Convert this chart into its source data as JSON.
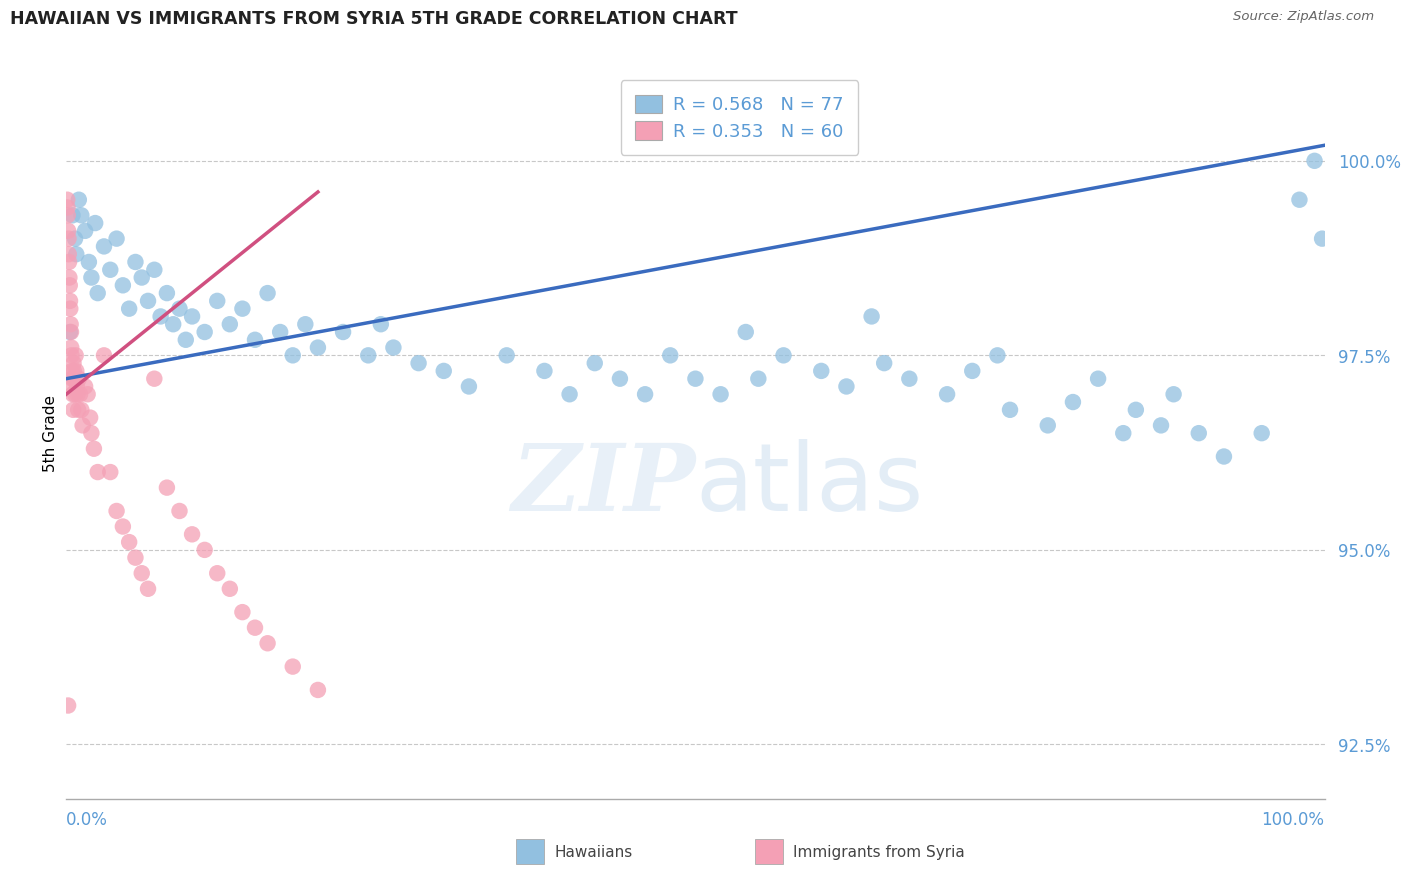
{
  "title": "HAWAIIAN VS IMMIGRANTS FROM SYRIA 5TH GRADE CORRELATION CHART",
  "source": "Source: ZipAtlas.com",
  "ylabel": "5th Grade",
  "ytick_vals": [
    92.5,
    95.0,
    97.5,
    100.0
  ],
  "ytick_labels": [
    "92.5%",
    "95.0%",
    "97.5%",
    "100.0%"
  ],
  "xmin": 0.0,
  "xmax": 100.0,
  "ymin": 91.8,
  "ymax": 101.2,
  "legend_blue_r": "R = 0.568",
  "legend_blue_n": "N = 77",
  "legend_pink_r": "R = 0.353",
  "legend_pink_n": "N = 60",
  "blue_color": "#92c0e0",
  "pink_color": "#f4a0b5",
  "trend_blue_color": "#3a6bbf",
  "trend_pink_color": "#d05080",
  "axis_label_color": "#5b9bd5",
  "title_color": "#222222",
  "grid_color": "#c8c8c8",
  "blue_points": [
    [
      0.3,
      97.8
    ],
    [
      0.5,
      99.3
    ],
    [
      0.7,
      99.0
    ],
    [
      0.8,
      98.8
    ],
    [
      1.0,
      99.5
    ],
    [
      1.2,
      99.3
    ],
    [
      1.5,
      99.1
    ],
    [
      1.8,
      98.7
    ],
    [
      2.0,
      98.5
    ],
    [
      2.3,
      99.2
    ],
    [
      2.5,
      98.3
    ],
    [
      3.0,
      98.9
    ],
    [
      3.5,
      98.6
    ],
    [
      4.0,
      99.0
    ],
    [
      4.5,
      98.4
    ],
    [
      5.0,
      98.1
    ],
    [
      5.5,
      98.7
    ],
    [
      6.0,
      98.5
    ],
    [
      6.5,
      98.2
    ],
    [
      7.0,
      98.6
    ],
    [
      7.5,
      98.0
    ],
    [
      8.0,
      98.3
    ],
    [
      8.5,
      97.9
    ],
    [
      9.0,
      98.1
    ],
    [
      9.5,
      97.7
    ],
    [
      10.0,
      98.0
    ],
    [
      11.0,
      97.8
    ],
    [
      12.0,
      98.2
    ],
    [
      13.0,
      97.9
    ],
    [
      14.0,
      98.1
    ],
    [
      15.0,
      97.7
    ],
    [
      16.0,
      98.3
    ],
    [
      17.0,
      97.8
    ],
    [
      18.0,
      97.5
    ],
    [
      19.0,
      97.9
    ],
    [
      20.0,
      97.6
    ],
    [
      22.0,
      97.8
    ],
    [
      24.0,
      97.5
    ],
    [
      25.0,
      97.9
    ],
    [
      26.0,
      97.6
    ],
    [
      28.0,
      97.4
    ],
    [
      30.0,
      97.3
    ],
    [
      32.0,
      97.1
    ],
    [
      35.0,
      97.5
    ],
    [
      38.0,
      97.3
    ],
    [
      40.0,
      97.0
    ],
    [
      42.0,
      97.4
    ],
    [
      44.0,
      97.2
    ],
    [
      46.0,
      97.0
    ],
    [
      48.0,
      97.5
    ],
    [
      50.0,
      97.2
    ],
    [
      52.0,
      97.0
    ],
    [
      54.0,
      97.8
    ],
    [
      55.0,
      97.2
    ],
    [
      57.0,
      97.5
    ],
    [
      60.0,
      97.3
    ],
    [
      62.0,
      97.1
    ],
    [
      64.0,
      98.0
    ],
    [
      65.0,
      97.4
    ],
    [
      67.0,
      97.2
    ],
    [
      70.0,
      97.0
    ],
    [
      72.0,
      97.3
    ],
    [
      74.0,
      97.5
    ],
    [
      75.0,
      96.8
    ],
    [
      78.0,
      96.6
    ],
    [
      80.0,
      96.9
    ],
    [
      82.0,
      97.2
    ],
    [
      84.0,
      96.5
    ],
    [
      85.0,
      96.8
    ],
    [
      87.0,
      96.6
    ],
    [
      88.0,
      97.0
    ],
    [
      90.0,
      96.5
    ],
    [
      92.0,
      96.2
    ],
    [
      95.0,
      96.5
    ],
    [
      98.0,
      99.5
    ],
    [
      99.2,
      100.0
    ],
    [
      99.8,
      99.0
    ]
  ],
  "pink_points": [
    [
      0.08,
      99.5
    ],
    [
      0.1,
      99.4
    ],
    [
      0.12,
      99.3
    ],
    [
      0.15,
      99.1
    ],
    [
      0.18,
      99.0
    ],
    [
      0.2,
      98.8
    ],
    [
      0.22,
      98.7
    ],
    [
      0.25,
      98.5
    ],
    [
      0.28,
      98.4
    ],
    [
      0.3,
      98.2
    ],
    [
      0.32,
      98.1
    ],
    [
      0.35,
      97.9
    ],
    [
      0.38,
      97.8
    ],
    [
      0.4,
      97.6
    ],
    [
      0.42,
      97.5
    ],
    [
      0.45,
      97.3
    ],
    [
      0.48,
      97.2
    ],
    [
      0.5,
      97.1
    ],
    [
      0.52,
      97.0
    ],
    [
      0.55,
      96.8
    ],
    [
      0.58,
      97.4
    ],
    [
      0.6,
      97.3
    ],
    [
      0.65,
      97.2
    ],
    [
      0.7,
      97.0
    ],
    [
      0.75,
      97.5
    ],
    [
      0.8,
      97.3
    ],
    [
      0.85,
      97.1
    ],
    [
      0.9,
      97.0
    ],
    [
      0.95,
      96.8
    ],
    [
      1.0,
      97.2
    ],
    [
      1.1,
      97.0
    ],
    [
      1.2,
      96.8
    ],
    [
      1.3,
      96.6
    ],
    [
      1.5,
      97.1
    ],
    [
      1.7,
      97.0
    ],
    [
      1.9,
      96.7
    ],
    [
      2.0,
      96.5
    ],
    [
      2.2,
      96.3
    ],
    [
      2.5,
      96.0
    ],
    [
      3.0,
      97.5
    ],
    [
      3.5,
      96.0
    ],
    [
      4.0,
      95.5
    ],
    [
      4.5,
      95.3
    ],
    [
      5.0,
      95.1
    ],
    [
      5.5,
      94.9
    ],
    [
      6.0,
      94.7
    ],
    [
      6.5,
      94.5
    ],
    [
      7.0,
      97.2
    ],
    [
      8.0,
      95.8
    ],
    [
      9.0,
      95.5
    ],
    [
      10.0,
      95.2
    ],
    [
      11.0,
      95.0
    ],
    [
      12.0,
      94.7
    ],
    [
      13.0,
      94.5
    ],
    [
      14.0,
      94.2
    ],
    [
      15.0,
      94.0
    ],
    [
      16.0,
      93.8
    ],
    [
      18.0,
      93.5
    ],
    [
      0.15,
      93.0
    ],
    [
      20.0,
      93.2
    ]
  ],
  "blue_trend_x": [
    0.0,
    100.0
  ],
  "blue_trend_y": [
    97.2,
    100.2
  ],
  "pink_trend_x": [
    0.0,
    20.0
  ],
  "pink_trend_y": [
    97.0,
    99.6
  ]
}
